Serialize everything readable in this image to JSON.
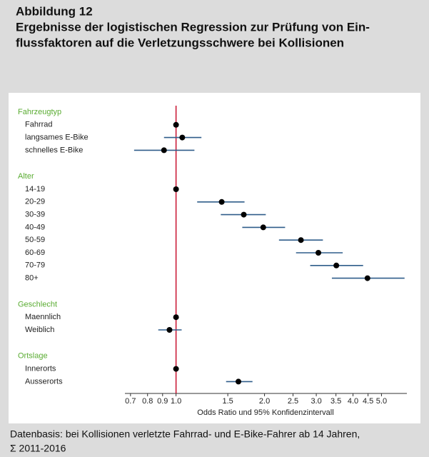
{
  "chart_data": {
    "type": "forest",
    "figure_label": "Abbildung 12",
    "title": [
      "Ergebnisse der logistischen Regression zur Prüfung von Ein-",
      "flussfaktoren auf die Verletzungsschwere bei Kollisionen"
    ],
    "x_label": "Odds Ratio und 95% Konfidenzintervall",
    "source": [
      "Datenbasis: bei Kollisionen verletzte Fahrrad- und E-Bike-Fahrer ab 14 Jahren,",
      "Σ 2011-2016"
    ],
    "log_x": true,
    "xlim": [
      0.67,
      6.1
    ],
    "xticks": [
      0.7,
      0.8,
      0.9,
      {
        "value": 1,
        "label": "1.0"
      },
      1.5,
      {
        "value": 2,
        "label": "2.0"
      },
      2.5,
      {
        "value": 3,
        "label": "3.0"
      },
      3.5,
      {
        "value": 4,
        "label": "4.0"
      },
      4.5,
      {
        "value": 5,
        "label": "5.0"
      }
    ],
    "reference_line": 1,
    "reference_color": "#c8102e",
    "ci_color": "#2f5d8a",
    "point_color": "#000000",
    "group_color": "#5aac32",
    "groups": [
      {
        "name": "Fahrzeugtyp",
        "categories": [
          "Fahrrad",
          "langsames E-Bike",
          "schnelles E-Bike"
        ],
        "values": [
          1,
          1.05,
          0.91
        ],
        "lower": [
          null,
          0.91,
          0.72
        ],
        "upper": [
          null,
          1.22,
          1.155
        ]
      },
      {
        "name": "Alter",
        "categories": [
          "14-19",
          "20-29",
          "30-39",
          "40-49",
          "50-59",
          "60-69",
          "70-79",
          "80+"
        ],
        "values": [
          1,
          1.43,
          1.7,
          1.98,
          2.66,
          3.05,
          3.51,
          4.48
        ],
        "lower": [
          null,
          1.18,
          1.42,
          1.68,
          2.24,
          2.56,
          2.86,
          3.39
        ],
        "upper": [
          null,
          1.71,
          2.02,
          2.35,
          3.16,
          3.69,
          4.33,
          5.99
        ]
      },
      {
        "name": "Geschlecht",
        "categories": [
          "Maennlich",
          "Weiblich"
        ],
        "values": [
          1,
          0.95
        ],
        "lower": [
          null,
          0.87
        ],
        "upper": [
          null,
          1.045
        ]
      },
      {
        "name": "Ortslage",
        "categories": [
          "Innerorts",
          "Ausserorts"
        ],
        "values": [
          1,
          1.63
        ],
        "lower": [
          null,
          1.48
        ],
        "upper": [
          null,
          1.82
        ]
      }
    ]
  }
}
